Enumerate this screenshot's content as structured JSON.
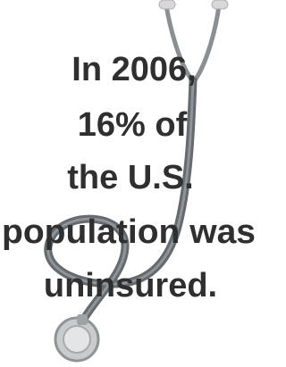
{
  "text": {
    "lines": [
      "In 2006,",
      "16% of",
      "the U.S.",
      "population was",
      "uninsured."
    ]
  }
}
